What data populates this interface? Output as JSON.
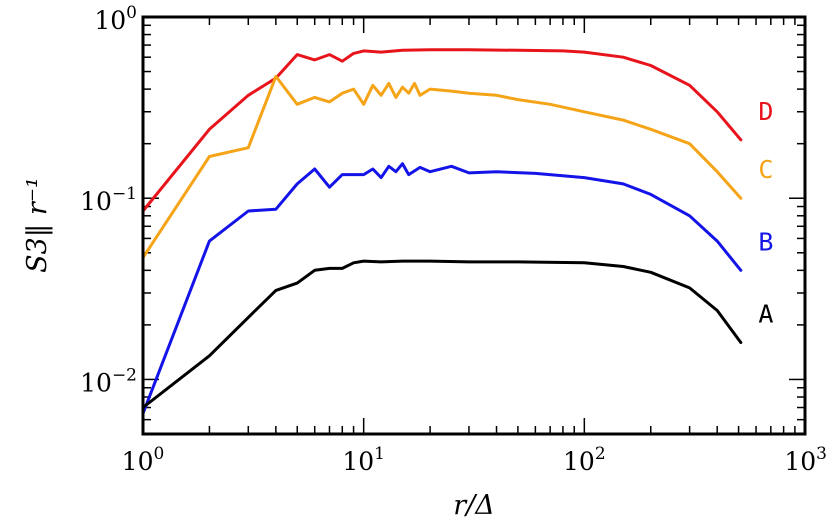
{
  "chart_data": {
    "type": "line",
    "xscale": "log",
    "yscale": "log",
    "xlabel": "r/Δ",
    "ylabel": "S3‖ r⁻¹",
    "xlim": [
      1,
      1000
    ],
    "ylim": [
      0.005,
      1
    ],
    "grid": false,
    "x_ticks": [
      {
        "base": "10",
        "exp": "0",
        "value": 1
      },
      {
        "base": "10",
        "exp": "1",
        "value": 10
      },
      {
        "base": "10",
        "exp": "2",
        "value": 100
      },
      {
        "base": "10",
        "exp": "3",
        "value": 1000
      }
    ],
    "y_ticks": [
      {
        "base": "10",
        "exp": "−2",
        "value": 0.01
      },
      {
        "base": "10",
        "exp": "−1",
        "value": 0.1
      },
      {
        "base": "10",
        "exp": "0",
        "value": 1
      }
    ],
    "series": [
      {
        "name": "D",
        "color": "#e8141c",
        "x": [
          1,
          2,
          3,
          4,
          5,
          6,
          7,
          8,
          9,
          10,
          12,
          15,
          20,
          30,
          50,
          80,
          100,
          150,
          200,
          300,
          400,
          512
        ],
        "y": [
          0.085,
          0.24,
          0.37,
          0.46,
          0.62,
          0.58,
          0.62,
          0.57,
          0.63,
          0.65,
          0.64,
          0.655,
          0.66,
          0.66,
          0.655,
          0.65,
          0.64,
          0.6,
          0.54,
          0.42,
          0.3,
          0.21
        ]
      },
      {
        "name": "C",
        "color": "#f5a418",
        "x": [
          1,
          2,
          3,
          4,
          5,
          6,
          7,
          8,
          9,
          10,
          11,
          12,
          13,
          14,
          15,
          16,
          17,
          18,
          20,
          25,
          30,
          40,
          50,
          70,
          100,
          150,
          200,
          300,
          400,
          512
        ],
        "y": [
          0.047,
          0.17,
          0.19,
          0.47,
          0.33,
          0.36,
          0.34,
          0.38,
          0.4,
          0.33,
          0.42,
          0.37,
          0.43,
          0.36,
          0.41,
          0.38,
          0.43,
          0.37,
          0.4,
          0.39,
          0.38,
          0.37,
          0.35,
          0.33,
          0.3,
          0.27,
          0.24,
          0.2,
          0.14,
          0.1
        ]
      },
      {
        "name": "B",
        "color": "#1414e8",
        "x": [
          1,
          2,
          3,
          4,
          5,
          6,
          7,
          8,
          9,
          10,
          11,
          12,
          13,
          14,
          15,
          16,
          18,
          20,
          25,
          30,
          40,
          60,
          100,
          150,
          200,
          300,
          400,
          512
        ],
        "y": [
          0.0065,
          0.058,
          0.085,
          0.087,
          0.12,
          0.145,
          0.115,
          0.135,
          0.135,
          0.135,
          0.145,
          0.13,
          0.15,
          0.14,
          0.155,
          0.135,
          0.148,
          0.14,
          0.15,
          0.138,
          0.14,
          0.137,
          0.13,
          0.12,
          0.105,
          0.08,
          0.058,
          0.04
        ]
      },
      {
        "name": "A",
        "color": "#000000",
        "x": [
          1,
          2,
          3,
          4,
          5,
          6,
          7,
          8,
          9,
          10,
          12,
          15,
          20,
          30,
          50,
          100,
          150,
          200,
          300,
          400,
          512
        ],
        "y": [
          0.007,
          0.0135,
          0.022,
          0.031,
          0.034,
          0.04,
          0.041,
          0.041,
          0.044,
          0.045,
          0.0445,
          0.045,
          0.045,
          0.0445,
          0.0445,
          0.044,
          0.042,
          0.039,
          0.032,
          0.024,
          0.016
        ]
      }
    ]
  }
}
